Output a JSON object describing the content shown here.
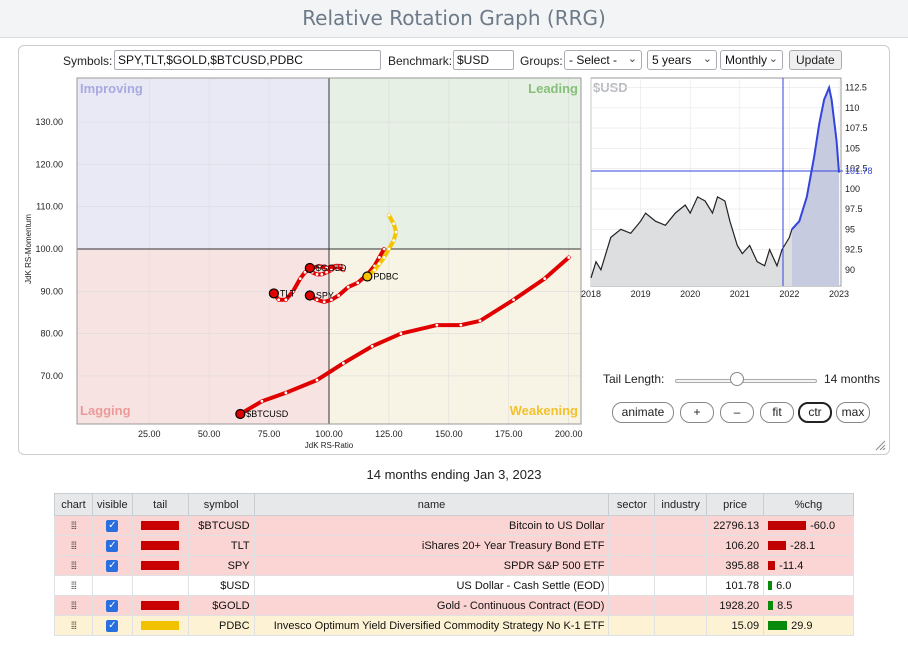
{
  "header": {
    "title": "Relative Rotation Graph (RRG)"
  },
  "controls": {
    "symbols_label": "Symbols:",
    "symbols_value": "SPY,TLT,$GOLD,$BTCUSD,PDBC",
    "benchmark_label": "Benchmark:",
    "benchmark_value": "$USD",
    "groups_label": "Groups:",
    "groups_value": "- Select -",
    "period_value": "5 years",
    "frequency_value": "Monthly",
    "update_label": "Update"
  },
  "rrg": {
    "quadrants": {
      "improving": "Improving",
      "leading": "Leading",
      "lagging": "Lagging",
      "weakening": "Weakening",
      "improving_color": "#e9e9f6",
      "leading_color": "#e6f0e4",
      "lagging_color": "#f8e3e3",
      "weakening_color": "#f8f4e5",
      "improving_text": "#a8a9e0",
      "leading_text": "#86bf7a",
      "lagging_text": "#eb9a9a",
      "weakening_text": "#f2c12e"
    },
    "x_label": "JdK RS-Ratio",
    "y_label": "JdK RS-Momentum",
    "x_ticks": [
      "25.00",
      "50.00",
      "75.00",
      "100.00",
      "125.00",
      "150.00",
      "175.00",
      "200.00"
    ],
    "y_ticks": [
      "130.00",
      "120.00",
      "110.00",
      "100.00",
      "90.00",
      "80.00",
      "70.00"
    ],
    "symbols": [
      {
        "label": "$BTCUSD",
        "color": "#e00000"
      },
      {
        "label": "TLT",
        "color": "#e00000"
      },
      {
        "label": "SPY",
        "color": "#e00000"
      },
      {
        "label": "$GOLD",
        "color": "#e00000"
      },
      {
        "label": "PDBC",
        "color": "#f5c400"
      }
    ]
  },
  "price_chart": {
    "symbol": "$USD",
    "y_ticks": [
      "112.5",
      "110",
      "107.5",
      "105",
      "102.5",
      "100",
      "97.5",
      "95",
      "92.5",
      "90"
    ],
    "x_ticks": [
      "2018",
      "2019",
      "2020",
      "2021",
      "2022",
      "2023"
    ],
    "current_value": "101.78",
    "current_color": "#3344dd"
  },
  "tail": {
    "label": "Tail Length:",
    "value": "14 months",
    "position": 0.45
  },
  "buttons": {
    "animate": "animate",
    "plus": "+",
    "minus": "–",
    "fit": "fit",
    "ctr": "ctr",
    "max": "max"
  },
  "caption": "14 months ending Jan 3, 2023",
  "table": {
    "headers": [
      "chart",
      "visible",
      "tail",
      "symbol",
      "name",
      "sector",
      "industry",
      "price",
      "%chg"
    ],
    "rows": [
      {
        "symbol": "$BTCUSD",
        "name": "Bitcoin to US Dollar",
        "price": "22796.13",
        "chg": "-60.0",
        "chg_num": -60.0,
        "tail_color": "#c80000",
        "row": "red",
        "visible": true
      },
      {
        "symbol": "TLT",
        "name": "iShares 20+ Year Treasury Bond ETF",
        "price": "106.20",
        "chg": "-28.1",
        "chg_num": -28.1,
        "tail_color": "#c80000",
        "row": "red",
        "visible": true
      },
      {
        "symbol": "SPY",
        "name": "SPDR S&P 500 ETF",
        "price": "395.88",
        "chg": "-11.4",
        "chg_num": -11.4,
        "tail_color": "#c80000",
        "row": "red",
        "visible": true
      },
      {
        "symbol": "$USD",
        "name": "US Dollar - Cash Settle (EOD)",
        "price": "101.78",
        "chg": "6.0",
        "chg_num": 6.0,
        "tail_color": "",
        "row": "white",
        "visible": false
      },
      {
        "symbol": "$GOLD",
        "name": "Gold - Continuous Contract (EOD)",
        "price": "1928.20",
        "chg": "8.5",
        "chg_num": 8.5,
        "tail_color": "#c80000",
        "row": "red",
        "visible": true
      },
      {
        "symbol": "PDBC",
        "name": "Invesco Optimum Yield Diversified Commodity Strategy No K-1 ETF",
        "price": "15.09",
        "chg": "29.9",
        "chg_num": 29.9,
        "tail_color": "#f2c200",
        "row": "yellow",
        "visible": true
      }
    ]
  }
}
